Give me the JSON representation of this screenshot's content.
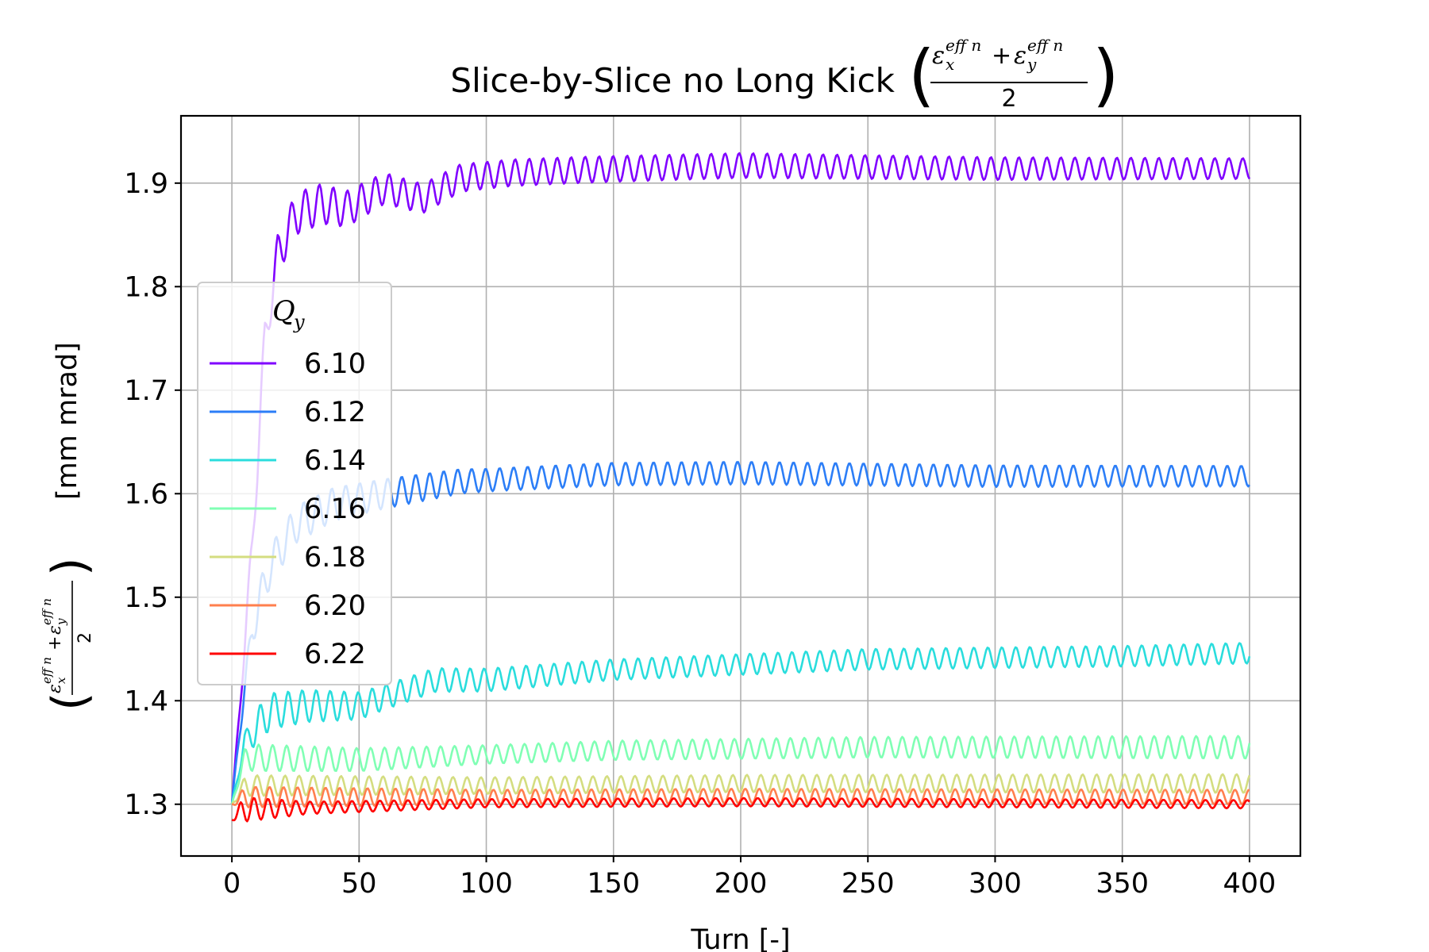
{
  "chart_data": {
    "type": "line",
    "title": "Slice-by-Slice no Long Kick",
    "title_math": {
      "num_a": "ε",
      "sub_a": "x",
      "sup_a": "eff n",
      "plus": "+",
      "num_b": "ε",
      "sub_b": "y",
      "sup_b": "eff n",
      "den": "2"
    },
    "xlabel": "Turn [-]",
    "ylabel_unit": "[mm mrad]",
    "ylabel_math": {
      "num_a": "ε",
      "sub_a": "x",
      "sup_a": "eff n",
      "plus": "+",
      "num_b": "ε",
      "sub_b": "y",
      "sup_b": "eff n",
      "den": "2"
    },
    "xlim": [
      -20,
      420
    ],
    "ylim": [
      1.25,
      1.965
    ],
    "xticks": [
      0,
      50,
      100,
      150,
      200,
      250,
      300,
      350,
      400
    ],
    "yticks": [
      1.3,
      1.4,
      1.5,
      1.6,
      1.7,
      1.8,
      1.9
    ],
    "xtick_labels": [
      "0",
      "50",
      "100",
      "150",
      "200",
      "250",
      "300",
      "350",
      "400"
    ],
    "ytick_labels": [
      "1.3",
      "1.4",
      "1.5",
      "1.6",
      "1.7",
      "1.8",
      "1.9"
    ],
    "grid": true,
    "legend": {
      "title": "Q",
      "title_sub": "y",
      "placement": "center-left"
    },
    "oscillation_period_turns": 5.5,
    "n_turns": 400,
    "series": [
      {
        "name": "6.10",
        "color": "#8000ff",
        "envelope": [
          [
            0,
            1.3
          ],
          [
            3,
            1.39
          ],
          [
            8,
            1.55
          ],
          [
            13,
            1.75
          ],
          [
            18,
            1.83
          ],
          [
            25,
            1.87
          ],
          [
            35,
            1.88
          ],
          [
            45,
            1.875
          ],
          [
            60,
            1.895
          ],
          [
            75,
            1.885
          ],
          [
            90,
            1.905
          ],
          [
            110,
            1.91
          ],
          [
            140,
            1.913
          ],
          [
            200,
            1.917
          ],
          [
            300,
            1.914
          ],
          [
            400,
            1.914
          ]
        ],
        "amplitude": [
          [
            0,
            0.0
          ],
          [
            10,
            0.02
          ],
          [
            30,
            0.02
          ],
          [
            60,
            0.015
          ],
          [
            100,
            0.013
          ],
          [
            200,
            0.012
          ],
          [
            400,
            0.01
          ]
        ]
      },
      {
        "name": "6.12",
        "color": "#2c7ef7",
        "envelope": [
          [
            0,
            1.3
          ],
          [
            3,
            1.37
          ],
          [
            8,
            1.47
          ],
          [
            15,
            1.53
          ],
          [
            25,
            1.57
          ],
          [
            40,
            1.59
          ],
          [
            60,
            1.6
          ],
          [
            90,
            1.612
          ],
          [
            150,
            1.619
          ],
          [
            200,
            1.62
          ],
          [
            300,
            1.617
          ],
          [
            400,
            1.617
          ]
        ],
        "amplitude": [
          [
            0,
            0.0
          ],
          [
            10,
            0.02
          ],
          [
            40,
            0.016
          ],
          [
            100,
            0.011
          ],
          [
            200,
            0.011
          ],
          [
            400,
            0.01
          ]
        ]
      },
      {
        "name": "6.14",
        "color": "#2adddd",
        "envelope": [
          [
            0,
            1.3
          ],
          [
            5,
            1.36
          ],
          [
            15,
            1.39
          ],
          [
            30,
            1.395
          ],
          [
            50,
            1.395
          ],
          [
            80,
            1.42
          ],
          [
            100,
            1.42
          ],
          [
            150,
            1.43
          ],
          [
            250,
            1.44
          ],
          [
            350,
            1.443
          ],
          [
            400,
            1.446
          ]
        ],
        "amplitude": [
          [
            0,
            0.0
          ],
          [
            10,
            0.018
          ],
          [
            60,
            0.012
          ],
          [
            150,
            0.01
          ],
          [
            400,
            0.01
          ]
        ]
      },
      {
        "name": "6.16",
        "color": "#80ffb4",
        "envelope": [
          [
            0,
            1.3
          ],
          [
            5,
            1.345
          ],
          [
            50,
            1.343
          ],
          [
            100,
            1.348
          ],
          [
            150,
            1.352
          ],
          [
            250,
            1.355
          ],
          [
            400,
            1.355
          ]
        ],
        "amplitude": [
          [
            0,
            0.0
          ],
          [
            8,
            0.013
          ],
          [
            100,
            0.009
          ],
          [
            400,
            0.011
          ]
        ]
      },
      {
        "name": "6.18",
        "color": "#d4dd80",
        "envelope": [
          [
            0,
            1.3
          ],
          [
            5,
            1.318
          ],
          [
            100,
            1.318
          ],
          [
            200,
            1.32
          ],
          [
            400,
            1.32
          ]
        ],
        "amplitude": [
          [
            0,
            0.0
          ],
          [
            6,
            0.01
          ],
          [
            100,
            0.008
          ],
          [
            400,
            0.009
          ]
        ]
      },
      {
        "name": "6.20",
        "color": "#ff7f4e",
        "envelope": [
          [
            0,
            1.3
          ],
          [
            5,
            1.307
          ],
          [
            100,
            1.307
          ],
          [
            200,
            1.308
          ],
          [
            400,
            1.307
          ]
        ],
        "amplitude": [
          [
            0,
            0.0
          ],
          [
            5,
            0.01
          ],
          [
            100,
            0.007
          ],
          [
            400,
            0.007
          ]
        ]
      },
      {
        "name": "6.22",
        "color": "#ff0000",
        "envelope": [
          [
            0,
            1.285
          ],
          [
            5,
            1.295
          ],
          [
            100,
            1.301
          ],
          [
            200,
            1.302
          ],
          [
            400,
            1.3
          ]
        ],
        "amplitude": [
          [
            0,
            0.0
          ],
          [
            4,
            0.012
          ],
          [
            30,
            0.006
          ],
          [
            100,
            0.004
          ],
          [
            400,
            0.004
          ]
        ]
      }
    ]
  }
}
